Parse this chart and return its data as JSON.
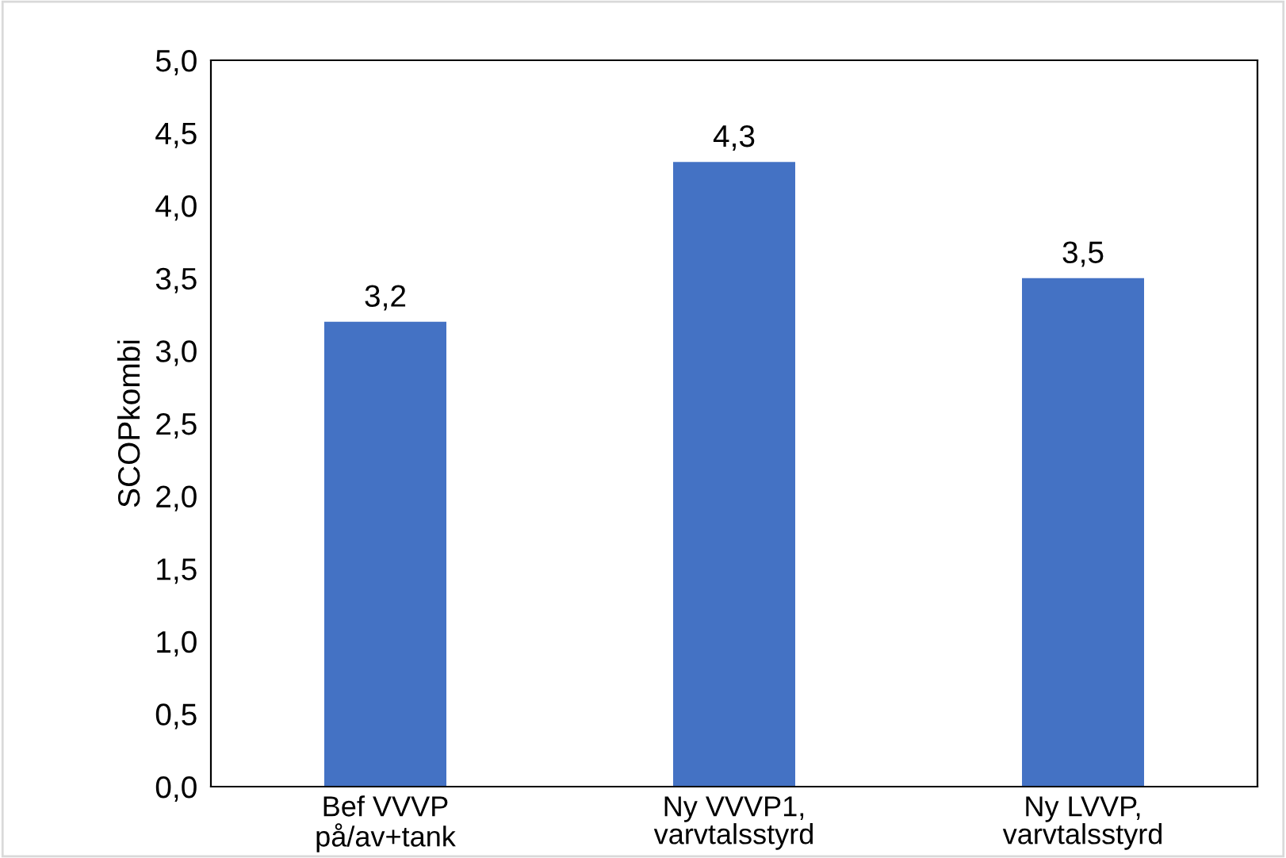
{
  "chart_data": {
    "type": "bar",
    "ylabel": "SCOPkombi",
    "categories": [
      "Bef VVVP\npå/av+tank",
      "Ny VVVP1,\nvarvtalsstyrd",
      "Ny LVVP,\nvarvtalsstyrd"
    ],
    "values": [
      3.2,
      4.3,
      3.5
    ],
    "value_labels": [
      "3,2",
      "4,3",
      "3,5"
    ],
    "color": "#4472c4",
    "ylim": [
      0,
      5
    ],
    "yticks": [
      {
        "value": 0,
        "label": "0,0"
      },
      {
        "value": 0.5,
        "label": "0,5"
      },
      {
        "value": 1,
        "label": "1,0"
      },
      {
        "value": 1.5,
        "label": "1,5"
      },
      {
        "value": 2,
        "label": "2,0"
      },
      {
        "value": 2.5,
        "label": "2,5"
      },
      {
        "value": 3,
        "label": "3,0"
      },
      {
        "value": 3.5,
        "label": "3,5"
      },
      {
        "value": 4,
        "label": "4,0"
      },
      {
        "value": 4.5,
        "label": "4,5"
      },
      {
        "value": 5,
        "label": "5,0"
      }
    ],
    "grid": false
  }
}
